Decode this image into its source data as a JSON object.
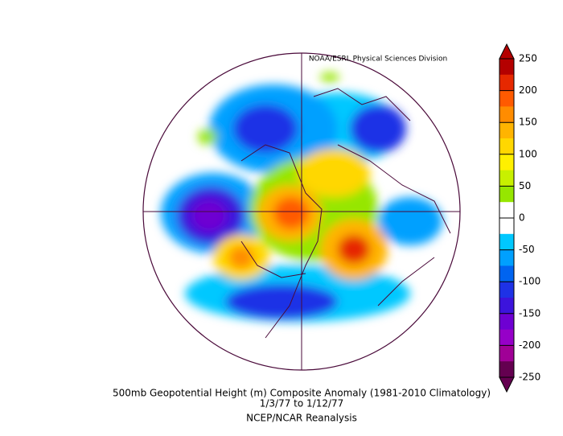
{
  "header": {
    "credit": "NOAA/ESRL Physical Sciences Division"
  },
  "colorbar": {
    "lim": [
      -250,
      250
    ],
    "ticks": [
      250,
      200,
      150,
      100,
      50,
      0,
      -50,
      -100,
      -150,
      -200,
      -250
    ],
    "colors": [
      "#b40000",
      "#e62800",
      "#ff5a00",
      "#ff8c00",
      "#ffb400",
      "#ffd700",
      "#fff000",
      "#c8f000",
      "#96e600",
      "#ffffff",
      "#ffffff",
      "#00c8ff",
      "#00a0ff",
      "#0064f0",
      "#1e32e6",
      "#3c14dc",
      "#6e00d2",
      "#9600c8",
      "#a00096",
      "#640050"
    ]
  },
  "caption": {
    "line1": "500mb Geopotential Height (m) Composite Anomaly (1981-2010 Climatology)",
    "line2": "1/3/77  to 1/12/77",
    "line3": "NCEP/NCAR Reanalysis"
  }
}
